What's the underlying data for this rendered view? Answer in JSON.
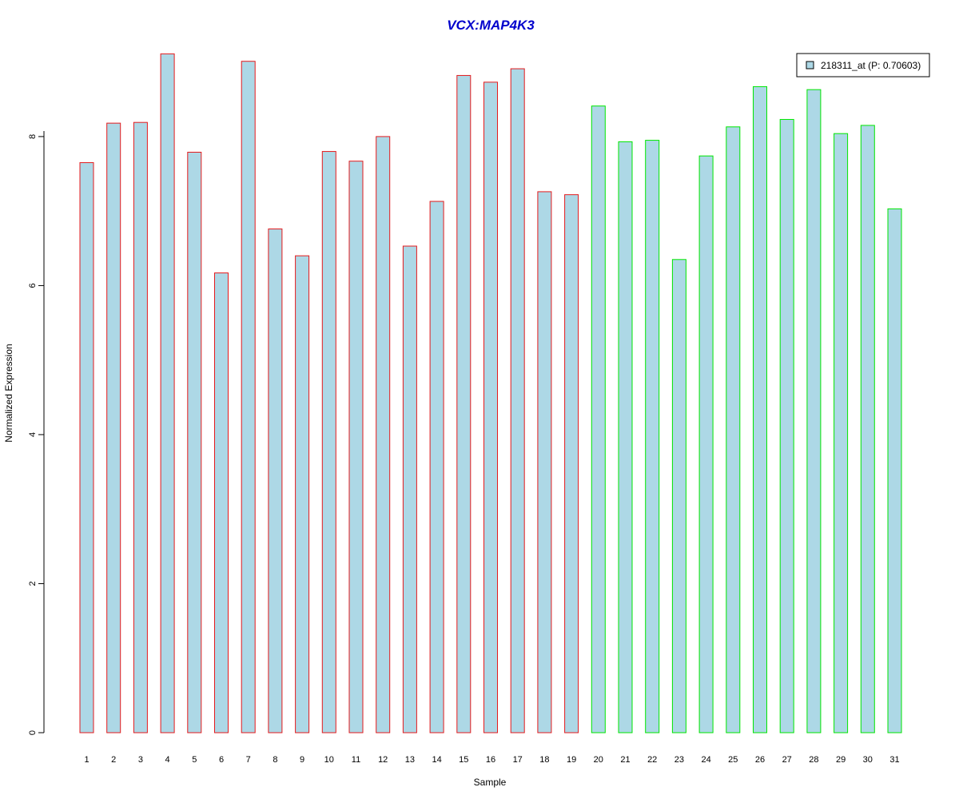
{
  "chart_data": {
    "type": "bar",
    "title": "VCX:MAP4K3",
    "xlabel": "Sample",
    "ylabel": "Normalized Expression",
    "categories": [
      "1",
      "2",
      "3",
      "4",
      "5",
      "6",
      "7",
      "8",
      "9",
      "10",
      "11",
      "12",
      "13",
      "14",
      "15",
      "16",
      "17",
      "18",
      "19",
      "20",
      "21",
      "22",
      "23",
      "24",
      "25",
      "26",
      "27",
      "28",
      "29",
      "30",
      "31"
    ],
    "series": [
      {
        "name": "218311_at (P: 0.70603)",
        "values": [
          7.65,
          8.18,
          8.19,
          9.11,
          7.79,
          6.17,
          9.01,
          6.76,
          6.4,
          7.8,
          7.67,
          8.0,
          6.53,
          7.13,
          8.82,
          8.73,
          8.91,
          7.26,
          7.22,
          8.41,
          7.93,
          7.95,
          6.35,
          7.74,
          8.13,
          8.67,
          8.23,
          8.63,
          8.04,
          8.15,
          7.03
        ]
      }
    ],
    "groups": [
      {
        "samples": [
          1,
          19
        ],
        "border_color": "#e41a1c"
      },
      {
        "samples": [
          20,
          31
        ],
        "border_color": "#00e600"
      }
    ],
    "yticks": [
      "0",
      "2",
      "4",
      "6",
      "8"
    ],
    "ylim": [
      0,
      9.2
    ],
    "legend_position": "top-right",
    "grid": false,
    "colors": {
      "bar_fill": "#add8e6",
      "title": "#0000cc",
      "axis": "#000000"
    }
  }
}
